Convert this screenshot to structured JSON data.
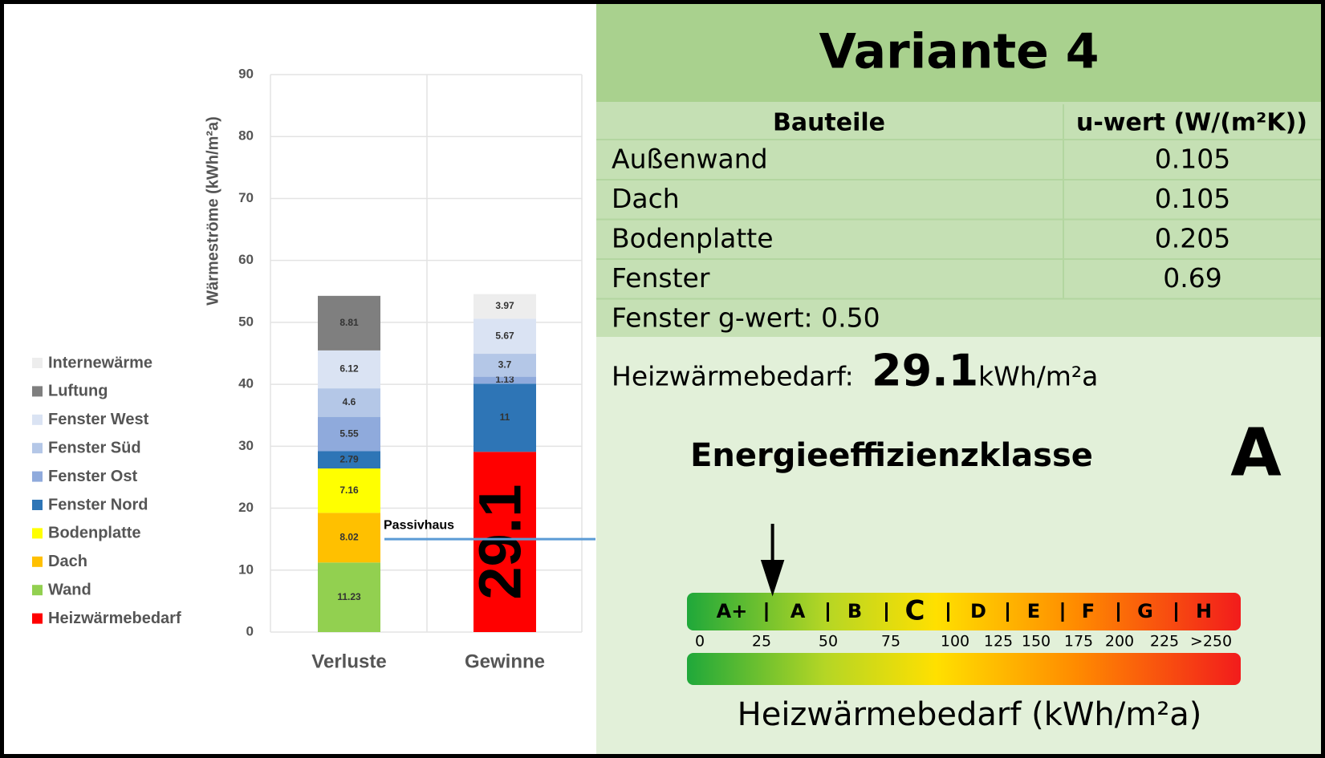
{
  "chart_data": {
    "type": "bar",
    "stacked": true,
    "y_label": "Wärmeströme (kWh/m²a)",
    "categories": [
      "Verluste",
      "Gewinne"
    ],
    "series": [
      {
        "name": "Heizwärmebedarf",
        "color": "#ff0000",
        "values": [
          null,
          29.1
        ]
      },
      {
        "name": "Wand",
        "color": "#92d050",
        "values": [
          11.23,
          null
        ]
      },
      {
        "name": "Dach",
        "color": "#ffc000",
        "values": [
          8.02,
          null
        ]
      },
      {
        "name": "Bodenplatte",
        "color": "#ffff00",
        "values": [
          7.16,
          null
        ]
      },
      {
        "name": "Fenster Nord",
        "color": "#2e75b6",
        "values": [
          2.79,
          11
        ]
      },
      {
        "name": "Fenster Ost",
        "color": "#8faadc",
        "values": [
          5.55,
          1.13
        ]
      },
      {
        "name": "Fenster Süd",
        "color": "#b4c7e7",
        "values": [
          4.6,
          3.7
        ]
      },
      {
        "name": "Fenster West",
        "color": "#dae3f3",
        "values": [
          6.12,
          5.67
        ]
      },
      {
        "name": "Luftung",
        "color": "#7f7f7f",
        "values": [
          8.81,
          null
        ]
      },
      {
        "name": "Internewärme",
        "color": "#ededed",
        "values": [
          null,
          3.97
        ]
      }
    ],
    "ylim": [
      0,
      90
    ],
    "yticks": [
      0,
      10,
      20,
      30,
      40,
      50,
      60,
      70,
      80,
      90
    ],
    "grid": true,
    "annotation": {
      "text": "Passivhaus",
      "value": 15
    }
  },
  "panel": {
    "title": "Variante 4",
    "table": {
      "header": [
        "Bauteile",
        "u-wert (W/(m²K))"
      ],
      "rows": [
        [
          "Außenwand",
          "0.105"
        ],
        [
          "Dach",
          "0.105"
        ],
        [
          "Bodenplatte",
          "0.205"
        ],
        [
          "Fenster",
          "0.69"
        ]
      ]
    },
    "g_wert": "Fenster g-wert: 0.50",
    "heiz": {
      "label": "Heizwärmebedarf:",
      "value": 29.1,
      "unit": "kWh/m²a"
    },
    "klasse": {
      "label": "Energieeffizienzklasse",
      "value": "A"
    },
    "scale": {
      "classes": [
        "A+",
        "A",
        "B",
        "C",
        "D",
        "E",
        "F",
        "G",
        "H"
      ],
      "ticks": [
        0,
        25,
        50,
        75,
        100,
        125,
        150,
        175,
        200,
        225,
        {
          "value": 250,
          "label": ">250"
        }
      ],
      "title": "Heizwärmebedarf (kWh/m²a)"
    }
  }
}
